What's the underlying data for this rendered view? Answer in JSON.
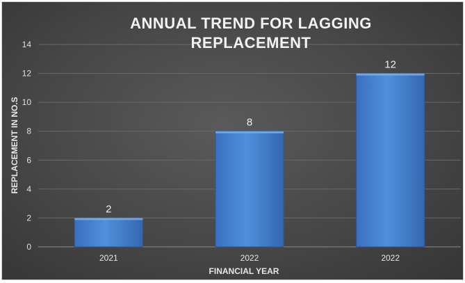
{
  "chart_data": {
    "type": "bar",
    "title_lines": [
      "ANNUAL TREND FOR LAGGING",
      "REPLACEMENT"
    ],
    "xlabel": "FINANCIAL YEAR",
    "ylabel": "REPLACEMENT  IN NO.S",
    "categories": [
      "2021",
      "2022",
      "2022"
    ],
    "values": [
      2,
      8,
      12
    ],
    "data_labels": [
      "2",
      "8",
      "12"
    ],
    "ylim": [
      0,
      14
    ],
    "yticks": [
      0,
      2,
      4,
      6,
      8,
      10,
      12,
      14
    ],
    "grid": true,
    "legend": "none",
    "colors": {
      "bar": "#4a86d4",
      "bar_dark": "#2f63a8",
      "gridline": "#6a6a6a",
      "text": "#e6e6e6"
    }
  }
}
